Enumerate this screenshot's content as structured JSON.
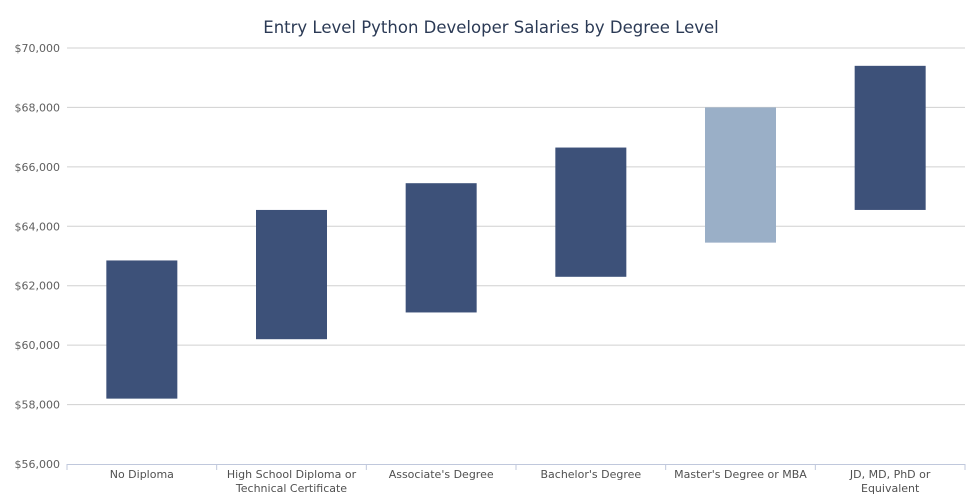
{
  "chart_data": {
    "type": "bar",
    "subtype": "floating-range",
    "title": "Entry Level Python Developer Salaries by Degree Level",
    "xlabel": "",
    "ylabel": "",
    "ylim": [
      56000,
      70000
    ],
    "yticks": [
      "$56,000",
      "$58,000",
      "$60,000",
      "$62,000",
      "$64,000",
      "$66,000",
      "$68,000",
      "$70,000"
    ],
    "grid": true,
    "legend": "none",
    "categories": [
      [
        "No Diploma"
      ],
      [
        "High School Diploma or",
        "Technical Certificate"
      ],
      [
        "Associate's Degree"
      ],
      [
        "Bachelor's Degree"
      ],
      [
        "Master's Degree or MBA"
      ],
      [
        "JD, MD, PhD or",
        "Equivalent"
      ]
    ],
    "ranges": [
      {
        "low": 58200,
        "high": 62850
      },
      {
        "low": 60200,
        "high": 64550
      },
      {
        "low": 61100,
        "high": 65450
      },
      {
        "low": 62300,
        "high": 66650
      },
      {
        "low": 63450,
        "high": 68000
      },
      {
        "low": 64550,
        "high": 69400
      }
    ],
    "highlight_index": 4,
    "colors": {
      "bar": "#3d5179",
      "highlight": "#9aafc7",
      "grid": "#d0d0d0",
      "axis": "#c0c8dc",
      "title": "#2b3a55",
      "tick": "#606060"
    }
  }
}
